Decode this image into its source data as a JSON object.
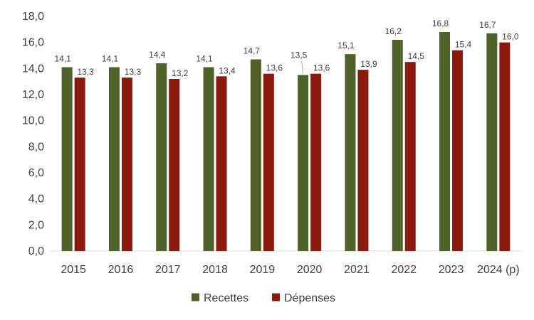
{
  "chart_data": {
    "type": "bar",
    "categories": [
      "2015",
      "2016",
      "2017",
      "2018",
      "2019",
      "2020",
      "2021",
      "2022",
      "2023",
      "2024 (p)"
    ],
    "series": [
      {
        "name": "Recettes",
        "color": "#4f6228",
        "values": [
          14.1,
          14.1,
          14.4,
          14.1,
          14.7,
          13.5,
          15.1,
          16.2,
          16.8,
          16.7
        ],
        "labels": [
          "14,1",
          "14,1",
          "14,4",
          "14,1",
          "14,7",
          "13,5",
          "15,1",
          "16,2",
          "16,8",
          "16,7"
        ]
      },
      {
        "name": "Dépenses",
        "color": "#8b1a0e",
        "values": [
          13.3,
          13.3,
          13.2,
          13.4,
          13.6,
          13.6,
          13.9,
          14.5,
          15.4,
          16.0
        ],
        "labels": [
          "13,3",
          "13,3",
          "13,2",
          "13,4",
          "13,6",
          "13,6",
          "13,9",
          "14,5",
          "15,4",
          "16,0"
        ]
      }
    ],
    "title": "",
    "xlabel": "",
    "ylabel": "",
    "ylim": [
      0,
      18
    ],
    "yticks": [
      0,
      2,
      4,
      6,
      8,
      10,
      12,
      14,
      16,
      18
    ],
    "ytick_labels": [
      "0,0",
      "2,0",
      "4,0",
      "6,0",
      "8,0",
      "10,0",
      "12,0",
      "14,0",
      "16,0",
      "18,0"
    ],
    "grid": false,
    "legend": "bottom",
    "axis_color": "#d9d9d9"
  }
}
